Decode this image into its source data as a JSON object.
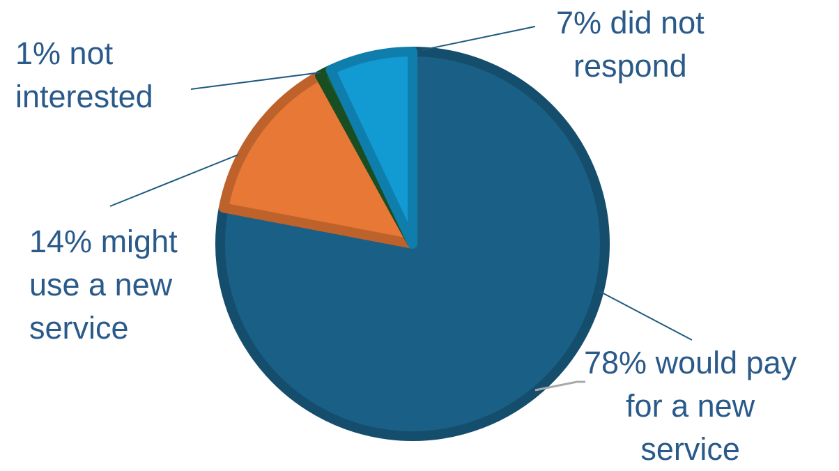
{
  "chart_data": {
    "type": "pie",
    "title": "",
    "start_angle_deg": 0,
    "direction": "clockwise",
    "slices": [
      {
        "name": "would pay for a new service",
        "value": 78,
        "color": "#1a5f85",
        "label_lines": [
          "78% would pay",
          "for a new",
          "service"
        ]
      },
      {
        "name": "might use a new service",
        "value": 14,
        "color": "#e87836",
        "label_lines": [
          "14% might",
          "use a new",
          "service"
        ]
      },
      {
        "name": "not interested",
        "value": 1,
        "color": "#1e5e2a",
        "label_lines": [
          "1% not",
          "interested"
        ]
      },
      {
        "name": "did not respond",
        "value": 7,
        "color": "#129ad2",
        "label_lines": [
          "7% did not",
          "respond"
        ]
      }
    ],
    "legend": "none",
    "leader_line_color": "#1e5b7e"
  }
}
